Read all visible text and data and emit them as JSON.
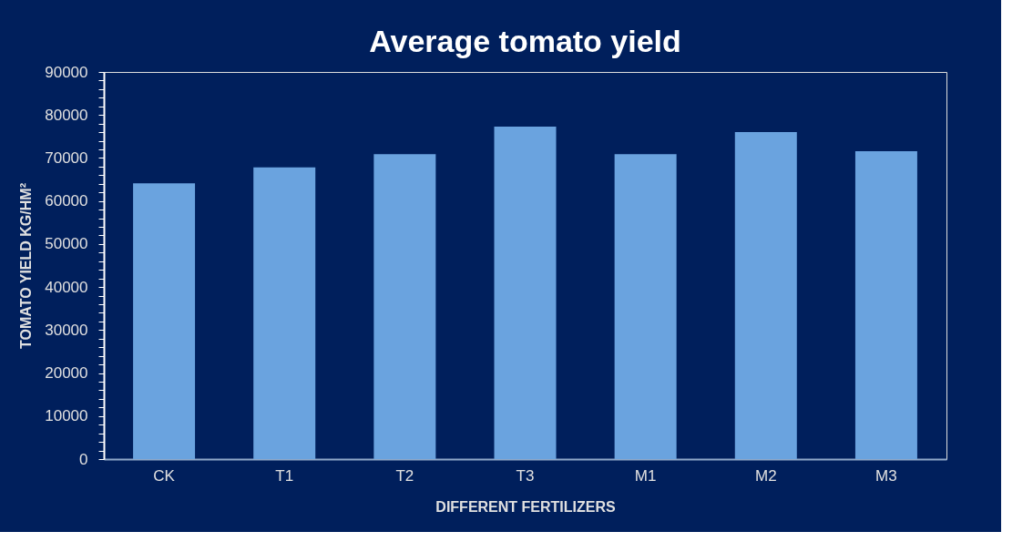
{
  "chart_data": {
    "type": "bar",
    "title": "Average tomato yield",
    "xlabel": "DIFFERENT FERTILIZERS",
    "ylabel": "TOMATO YIELD  KG/HM²",
    "categories": [
      "CK",
      "T1",
      "T2",
      "T3",
      "M1",
      "M2",
      "M3"
    ],
    "values": [
      64100,
      67800,
      70900,
      77300,
      70900,
      76000,
      71600
    ],
    "color": "#6aa3df",
    "ylim": [
      0,
      90000
    ],
    "yticks": [
      0,
      {
        "value": 2000,
        "label": null
      },
      {
        "value": 4000,
        "label": null
      },
      {
        "value": 6000,
        "label": null
      },
      {
        "value": 8000,
        "label": null
      },
      10000,
      {
        "value": 12000,
        "label": null
      },
      {
        "value": 14000,
        "label": null
      },
      {
        "value": 16000,
        "label": null
      },
      {
        "value": 18000,
        "label": null
      },
      20000,
      {
        "value": 22000,
        "label": null
      },
      {
        "value": 24000,
        "label": null
      },
      {
        "value": 26000,
        "label": null
      },
      {
        "value": 28000,
        "label": null
      },
      30000,
      {
        "value": 32000,
        "label": null
      },
      {
        "value": 34000,
        "label": null
      },
      {
        "value": 36000,
        "label": null
      },
      {
        "value": 38000,
        "label": null
      },
      40000,
      {
        "value": 42000,
        "label": null
      },
      {
        "value": 44000,
        "label": null
      },
      {
        "value": 46000,
        "label": null
      },
      {
        "value": 48000,
        "label": null
      },
      50000,
      {
        "value": 52000,
        "label": null
      },
      {
        "value": 54000,
        "label": null
      },
      {
        "value": 56000,
        "label": null
      },
      {
        "value": 58000,
        "label": null
      },
      60000,
      {
        "value": 62000,
        "label": null
      },
      {
        "value": 64000,
        "label": null
      },
      {
        "value": 66000,
        "label": null
      },
      {
        "value": 68000,
        "label": null
      },
      70000,
      {
        "value": 72000,
        "label": null
      },
      {
        "value": 74000,
        "label": null
      },
      {
        "value": 76000,
        "label": null
      },
      {
        "value": 78000,
        "label": null
      },
      80000,
      {
        "value": 82000,
        "label": null
      },
      {
        "value": 84000,
        "label": null
      },
      {
        "value": 86000,
        "label": null
      },
      {
        "value": 88000,
        "label": null
      },
      90000
    ],
    "grid": false
  }
}
